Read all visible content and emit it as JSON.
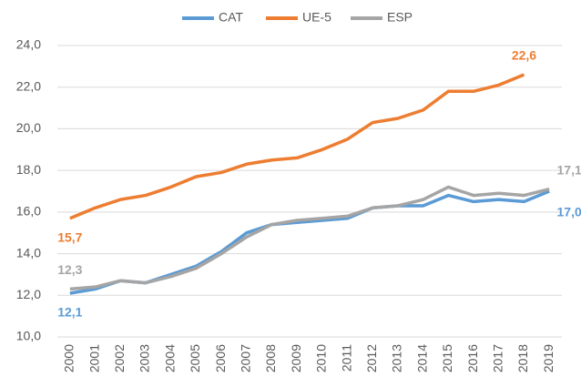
{
  "chart_data": {
    "type": "line",
    "categories": [
      "2000",
      "2001",
      "2002",
      "2003",
      "2004",
      "2005",
      "2006",
      "2007",
      "2008",
      "2009",
      "2010",
      "2011",
      "2012",
      "2013",
      "2014",
      "2015",
      "2016",
      "2017",
      "2018",
      "2019"
    ],
    "series": [
      {
        "name": "CAT",
        "color": "#5b9bd5",
        "values": [
          12.1,
          12.3,
          12.7,
          12.6,
          13.0,
          13.4,
          14.1,
          15.0,
          15.4,
          15.5,
          15.6,
          15.7,
          16.2,
          16.3,
          16.3,
          16.8,
          16.5,
          16.6,
          16.5,
          17.0
        ],
        "value_labels": [
          "12,1",
          null,
          null,
          null,
          null,
          null,
          null,
          null,
          null,
          null,
          null,
          null,
          null,
          null,
          null,
          null,
          null,
          null,
          null,
          "17,0"
        ]
      },
      {
        "name": "UE-5",
        "color": "#ed7d31",
        "values": [
          15.7,
          16.2,
          16.6,
          16.8,
          17.2,
          17.7,
          17.9,
          18.3,
          18.5,
          18.6,
          19.0,
          19.5,
          20.3,
          20.5,
          20.9,
          21.8,
          21.8,
          22.1,
          22.6,
          null
        ],
        "value_labels": [
          "15,7",
          null,
          null,
          null,
          null,
          null,
          null,
          null,
          null,
          null,
          null,
          null,
          null,
          null,
          null,
          null,
          null,
          null,
          "22,6",
          null
        ]
      },
      {
        "name": "ESP",
        "color": "#a5a5a5",
        "values": [
          12.3,
          12.4,
          12.7,
          12.6,
          12.9,
          13.3,
          14.0,
          14.8,
          15.4,
          15.6,
          15.7,
          15.8,
          16.2,
          16.3,
          16.6,
          17.2,
          16.8,
          16.9,
          16.8,
          17.1
        ],
        "value_labels": [
          "12,3",
          null,
          null,
          null,
          null,
          null,
          null,
          null,
          null,
          null,
          null,
          null,
          null,
          null,
          null,
          null,
          null,
          null,
          null,
          "17,1"
        ]
      }
    ],
    "ylim": [
      10,
      24
    ],
    "yticks": [
      {
        "value": 10,
        "label": "10,0"
      },
      {
        "value": 12,
        "label": "12,0"
      },
      {
        "value": 14,
        "label": "14,0"
      },
      {
        "value": 16,
        "label": "16,0"
      },
      {
        "value": 18,
        "label": "18,0"
      },
      {
        "value": 20,
        "label": "20,0"
      },
      {
        "value": 22,
        "label": "22,0"
      },
      {
        "value": 24,
        "label": "24,0"
      }
    ],
    "grid": true,
    "legend": "top"
  }
}
